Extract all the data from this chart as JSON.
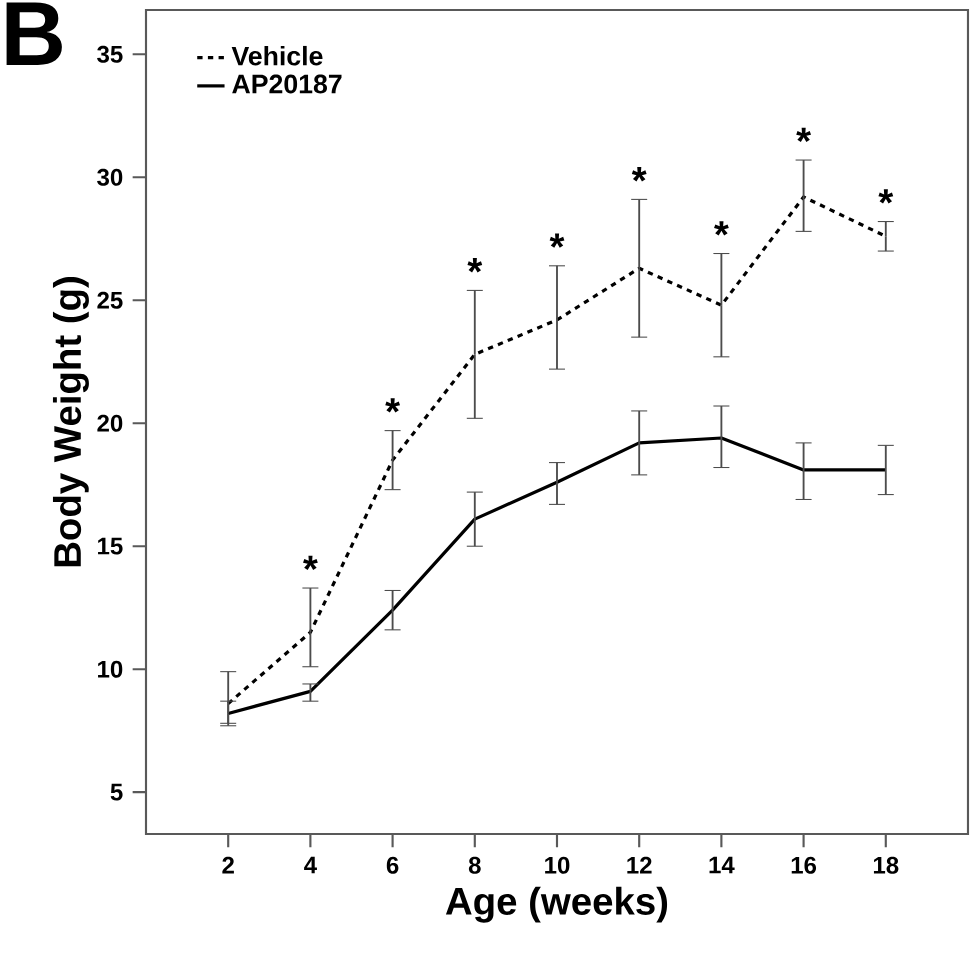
{
  "chart_data": {
    "type": "line",
    "xlabel": "Age (weeks)",
    "ylabel": "Body Weight (g)",
    "x": [
      2,
      4,
      6,
      8,
      10,
      12,
      14,
      16,
      18
    ],
    "series": [
      {
        "name": "Vehicle",
        "color": "#000000",
        "line_style": "dotted",
        "values": [
          8.6,
          11.5,
          18.5,
          22.8,
          24.2,
          26.3,
          24.8,
          29.2,
          27.6
        ],
        "errors": [
          [
            7.7,
            9.9
          ],
          [
            10.1,
            13.3
          ],
          [
            17.3,
            19.7
          ],
          [
            20.2,
            25.4
          ],
          [
            22.2,
            26.4
          ],
          [
            23.5,
            29.1
          ],
          [
            22.7,
            26.9
          ],
          [
            27.8,
            30.7
          ],
          [
            27.0,
            28.2
          ]
        ]
      },
      {
        "name": "AP20187",
        "color": "#000000",
        "line_style": "solid",
        "values": [
          8.2,
          9.1,
          12.4,
          16.1,
          17.6,
          19.2,
          19.4,
          18.1,
          18.1
        ],
        "errors": [
          [
            7.8,
            8.7
          ],
          [
            8.7,
            9.4
          ],
          [
            11.6,
            13.2
          ],
          [
            15.0,
            17.2
          ],
          [
            16.7,
            18.4
          ],
          [
            17.9,
            20.5
          ],
          [
            18.2,
            20.7
          ],
          [
            16.9,
            19.2
          ],
          [
            17.1,
            19.1
          ]
        ]
      }
    ],
    "xlim": [
      0,
      20
    ],
    "xticks": [
      2,
      4,
      6,
      8,
      10,
      12,
      14,
      16,
      18
    ],
    "ylim": [
      3.3,
      36.8
    ],
    "yticks": [
      5,
      10,
      15,
      20,
      25,
      30,
      35
    ],
    "grid": false,
    "legend": "top left",
    "marker": "none",
    "annotations": [
      "B",
      {
        "text": "*",
        "x": 4,
        "y": 11.5
      },
      {
        "text": "*",
        "x": 6,
        "y": 18.5
      },
      {
        "text": "*",
        "x": 8,
        "y": 22.8
      },
      {
        "text": "*",
        "x": 10,
        "y": 24.2
      },
      {
        "text": "*",
        "x": 12,
        "y": 26.3
      },
      {
        "text": "*",
        "x": 14,
        "y": 24.8
      },
      {
        "text": "*",
        "x": 16,
        "y": 29.2
      },
      {
        "text": "*",
        "x": 18,
        "y": 27.6
      }
    ]
  }
}
